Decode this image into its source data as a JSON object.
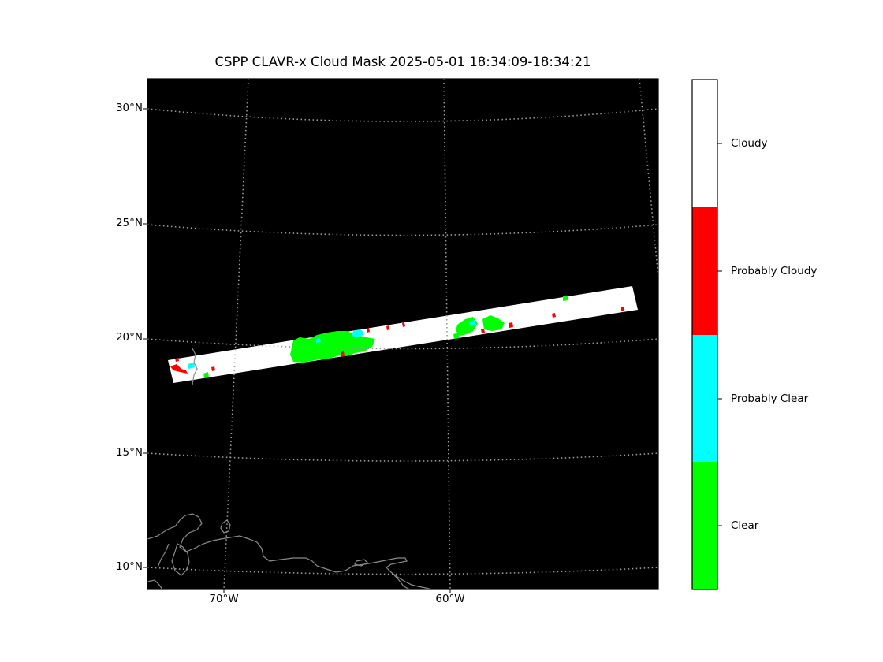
{
  "title": "CSPP CLAVR-x Cloud Mask 2025-05-01 18:34:09-18:34:21",
  "map": {
    "background_color": "#000000",
    "gridline_color": "#9a9a9a",
    "coastline_color": "#8a8a8a",
    "lat_labels": [
      {
        "lat": 30,
        "text": "30°N"
      },
      {
        "lat": 25,
        "text": "25°N"
      },
      {
        "lat": 20,
        "text": "20°N"
      },
      {
        "lat": 15,
        "text": "15°N"
      },
      {
        "lat": 10,
        "text": "10°N"
      }
    ],
    "lon_labels": [
      {
        "lon": -70,
        "text": "70°W"
      },
      {
        "lon": -60,
        "text": "60°W"
      }
    ]
  },
  "colorbar": {
    "categories": [
      {
        "label": "Cloudy",
        "color": "#ffffff"
      },
      {
        "label": "Probably Cloudy",
        "color": "#ff0000"
      },
      {
        "label": "Probably Clear",
        "color": "#00ffff"
      },
      {
        "label": "Clear",
        "color": "#00ff00"
      }
    ]
  }
}
